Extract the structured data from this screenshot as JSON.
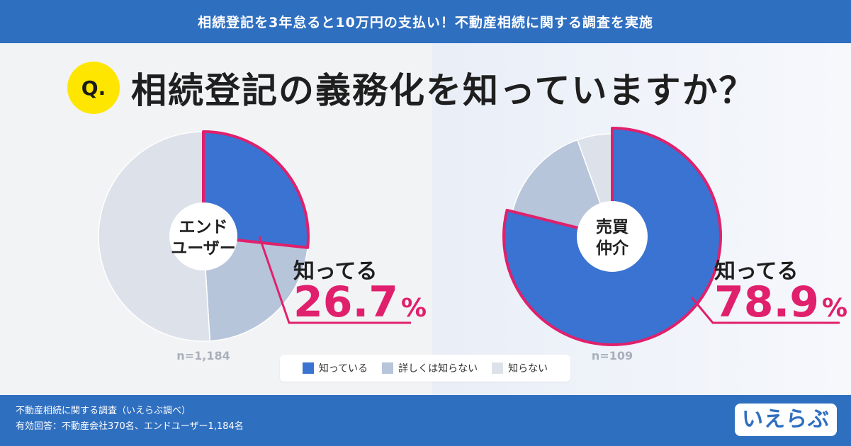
{
  "banner": {
    "title": "相続登記を3年怠ると10万円の支払い！不動産相続に関する調査を実施"
  },
  "question": {
    "badge": "Q.",
    "text": "相続登記の義務化を知っていますか？"
  },
  "colors": {
    "know": "#3a73d1",
    "somewhat": "#b7c5da",
    "unknown": "#dde2ea",
    "highlight": "#e0206c",
    "accent_bar": "#2f6fc0"
  },
  "chart_data": [
    {
      "type": "pie",
      "center_label": [
        "エンド",
        "ユーザー"
      ],
      "n_label": "n=1,184",
      "callout_label": "知ってる",
      "callout_value": "26.7",
      "callout_unit": "%",
      "slices": [
        {
          "name": "知っている",
          "value": 26.7
        },
        {
          "name": "詳しくは知らない",
          "value": 22.3
        },
        {
          "name": "知らない",
          "value": 51.0
        }
      ]
    },
    {
      "type": "pie",
      "center_label": [
        "売買",
        "仲介"
      ],
      "n_label": "n=109",
      "callout_label": "知ってる",
      "callout_value": "78.9",
      "callout_unit": "%",
      "slices": [
        {
          "name": "知っている",
          "value": 78.9
        },
        {
          "name": "詳しくは知らない",
          "value": 15.6
        },
        {
          "name": "知らない",
          "value": 5.5
        }
      ]
    }
  ],
  "legend": [
    {
      "label": "知っている"
    },
    {
      "label": "詳しくは知らない"
    },
    {
      "label": "知らない"
    }
  ],
  "footer": {
    "source_line1": "不動産相続に関する調査（いえらぶ調べ）",
    "source_line2": "有効回答：不動産会社370名、エンドユーザー1,184名",
    "logo": "いえらぶ"
  }
}
